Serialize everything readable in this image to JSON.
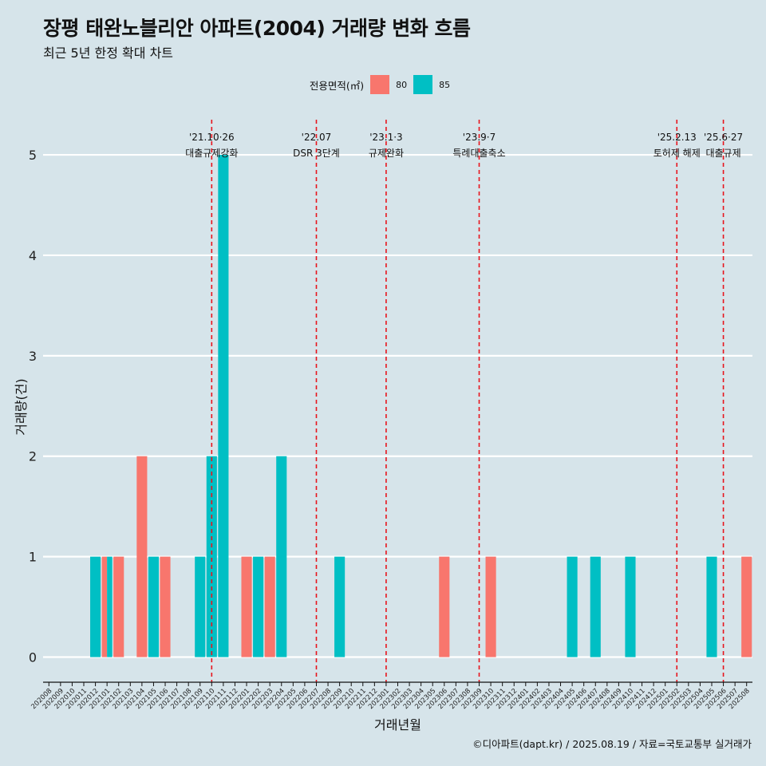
{
  "title": "장평 태완노블리안 아파트(2004) 거래량 변화 흐름",
  "subtitle": "최근 5년 한정 확대 차트",
  "legend": {
    "title": "전용면적(㎡)",
    "items": [
      {
        "label": "80",
        "color": "#F8766D"
      },
      {
        "label": "85",
        "color": "#00BFC4"
      }
    ]
  },
  "caption": "©디아파트(dapt.kr) / 2025.08.19 / 자료=국토교통부 실거래가",
  "chart_data": {
    "type": "bar",
    "xlabel": "거래년월",
    "ylabel": "거래량(건)",
    "ylim": [
      -0.25,
      5.35
    ],
    "yticks": [
      0,
      1,
      2,
      3,
      4,
      5
    ],
    "grid": true,
    "legend_position": "top",
    "categories": [
      "202008",
      "202009",
      "202010",
      "202011",
      "202012",
      "202101",
      "202102",
      "202103",
      "202104",
      "202105",
      "202106",
      "202107",
      "202108",
      "202109",
      "202110",
      "202111",
      "202112",
      "202201",
      "202202",
      "202203",
      "202204",
      "202205",
      "202206",
      "202207",
      "202208",
      "202209",
      "202210",
      "202211",
      "202212",
      "202301",
      "202302",
      "202303",
      "202304",
      "202305",
      "202306",
      "202307",
      "202308",
      "202309",
      "202310",
      "202311",
      "202312",
      "202401",
      "202402",
      "202403",
      "202404",
      "202405",
      "202406",
      "202407",
      "202408",
      "202409",
      "202410",
      "202411",
      "202412",
      "202501",
      "202502",
      "202503",
      "202504",
      "202505",
      "202506",
      "202507",
      "202508"
    ],
    "series": [
      {
        "name": "80",
        "color": "#F8766D",
        "values": [
          0,
          0,
          0,
          0,
          0,
          1,
          1,
          0,
          2,
          0,
          1,
          0,
          0,
          0,
          0,
          0,
          0,
          1,
          0,
          1,
          0,
          0,
          0,
          0,
          0,
          0,
          0,
          0,
          0,
          0,
          0,
          0,
          0,
          0,
          1,
          0,
          0,
          0,
          1,
          0,
          0,
          0,
          0,
          0,
          0,
          0,
          0,
          0,
          0,
          0,
          0,
          0,
          0,
          0,
          0,
          0,
          0,
          0,
          0,
          0,
          1
        ]
      },
      {
        "name": "85",
        "color": "#00BFC4",
        "values": [
          0,
          0,
          0,
          0,
          1,
          1,
          0,
          0,
          0,
          1,
          0,
          0,
          0,
          1,
          2,
          5,
          0,
          0,
          1,
          0,
          2,
          0,
          0,
          0,
          0,
          1,
          0,
          0,
          0,
          0,
          0,
          0,
          0,
          0,
          0,
          0,
          0,
          0,
          0,
          0,
          0,
          0,
          0,
          0,
          0,
          1,
          0,
          1,
          0,
          0,
          1,
          0,
          0,
          0,
          0,
          0,
          0,
          1,
          0,
          0,
          0
        ]
      }
    ],
    "events": [
      {
        "month": "202110",
        "line1": "'21.10·26",
        "line2": "대출규제강화"
      },
      {
        "month": "202207",
        "line1": "'22.07",
        "line2": "DSR 3단계"
      },
      {
        "month": "202301",
        "line1": "'23.1·3",
        "line2": "규제완화"
      },
      {
        "month": "202309",
        "line1": "'23.9·7",
        "line2": "특례대출축소"
      },
      {
        "month": "202502",
        "line1": "'25.2.13",
        "line2": "토허제 해제"
      },
      {
        "month": "202506",
        "line1": "'25.6·27",
        "line2": "대출규제"
      }
    ]
  }
}
